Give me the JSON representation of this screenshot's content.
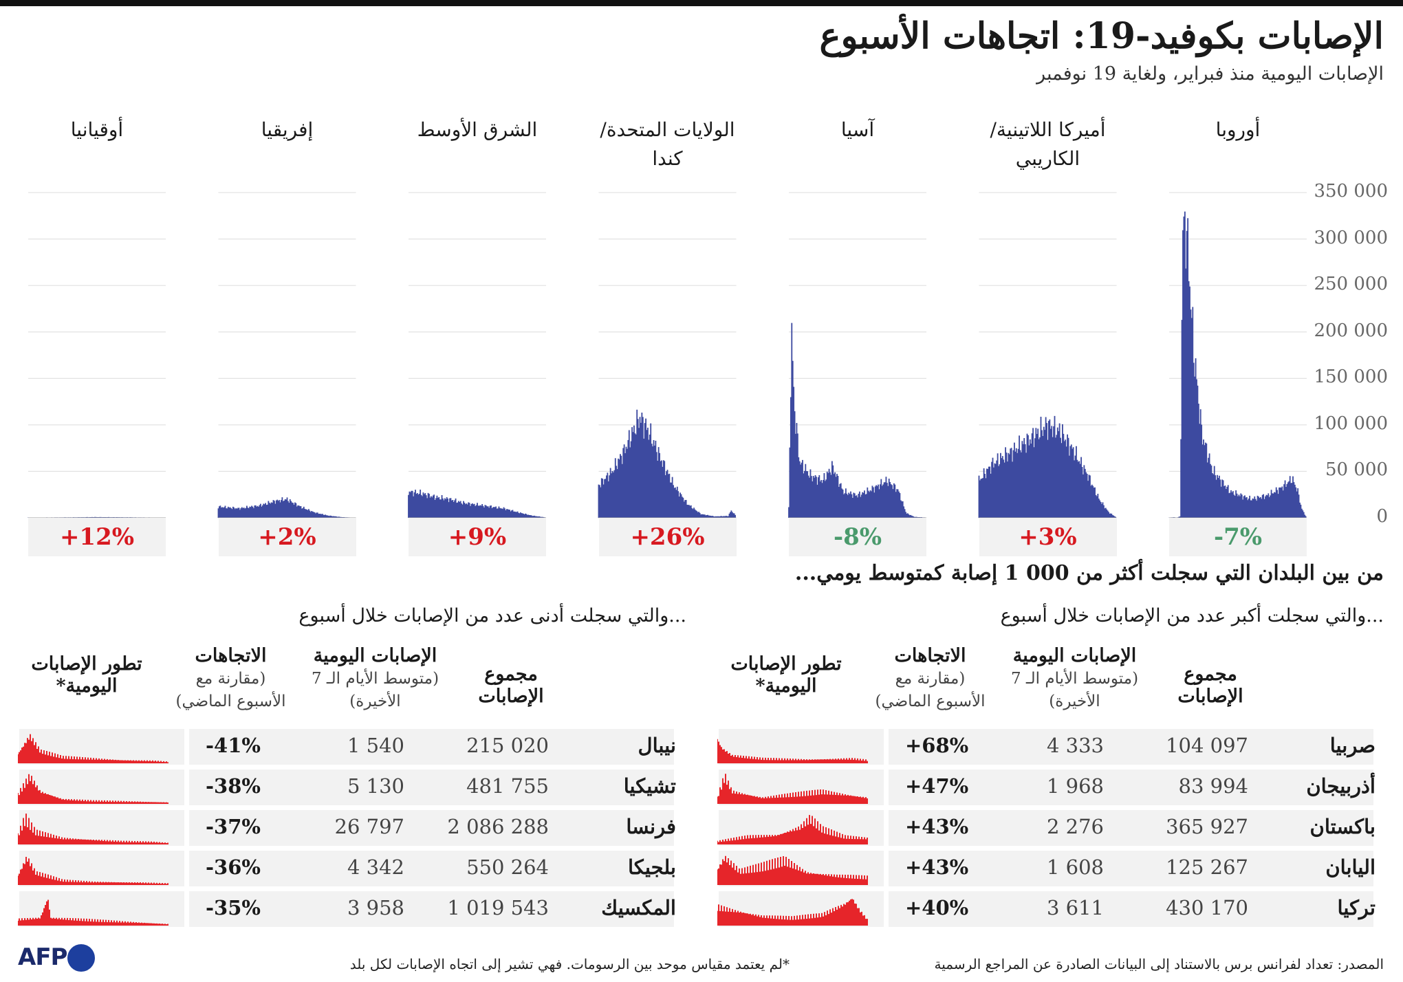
{
  "title": "الإصابات بكوفيد-19: اتجاهات الأسبوع",
  "subtitle": "الإصابات اليومية منذ فبراير، ولغاية 19 نوفمبر",
  "colors": {
    "bar": "#3d4aa0",
    "spark": "#e6252a",
    "increase": "#d71920",
    "decrease": "#4a9a6c",
    "band": "#f2f2f2"
  },
  "chart_data": {
    "type": "bar",
    "title": "الإصابات بكوفيد-19: اتجاهات الأسبوع",
    "subtitle": "الإصابات اليومية منذ فبراير، ولغاية 19 نوفمبر",
    "ylim": [
      0,
      350000
    ],
    "y_ticks": [
      "0",
      "50 000",
      "100 000",
      "150 000",
      "200 000",
      "250 000",
      "300 000",
      "350 000"
    ],
    "grid": true,
    "series": [
      {
        "name": "أوروبا",
        "trend": "-7%",
        "direction": "down",
        "shape": [
          [
            0,
            200
          ],
          [
            0.03,
            600
          ],
          [
            0.06,
            300
          ],
          [
            0.08,
            1500
          ],
          [
            0.1,
            305000
          ],
          [
            0.12,
            320000
          ],
          [
            0.14,
            280000
          ],
          [
            0.18,
            180000
          ],
          [
            0.24,
            90000
          ],
          [
            0.32,
            50000
          ],
          [
            0.45,
            28000
          ],
          [
            0.6,
            20000
          ],
          [
            0.72,
            24000
          ],
          [
            0.82,
            32000
          ],
          [
            0.9,
            42000
          ],
          [
            0.94,
            30000
          ],
          [
            0.97,
            10000
          ],
          [
            1,
            2000
          ]
        ]
      },
      {
        "name": "أميركا اللاتينية/ الكاريبي",
        "trend": "+3%",
        "direction": "up",
        "shape": [
          [
            0,
            40000
          ],
          [
            0.1,
            58000
          ],
          [
            0.25,
            72000
          ],
          [
            0.38,
            85000
          ],
          [
            0.5,
            100000
          ],
          [
            0.6,
            92000
          ],
          [
            0.7,
            70000
          ],
          [
            0.8,
            45000
          ],
          [
            0.88,
            20000
          ],
          [
            0.95,
            6000
          ],
          [
            1,
            1000
          ]
        ]
      },
      {
        "name": "آسيا",
        "trend": "-8%",
        "direction": "down",
        "shape": [
          [
            0,
            10000
          ],
          [
            0.02,
            202000
          ],
          [
            0.04,
            120000
          ],
          [
            0.08,
            60000
          ],
          [
            0.16,
            45000
          ],
          [
            0.25,
            40000
          ],
          [
            0.32,
            55000
          ],
          [
            0.4,
            28000
          ],
          [
            0.5,
            24000
          ],
          [
            0.6,
            30000
          ],
          [
            0.72,
            40000
          ],
          [
            0.8,
            30000
          ],
          [
            0.86,
            5000
          ],
          [
            0.92,
            1000
          ],
          [
            1,
            400
          ]
        ]
      },
      {
        "name": "الولايات المتحدة/ كندا",
        "trend": "+26%",
        "direction": "up",
        "shape": [
          [
            0,
            35000
          ],
          [
            0.1,
            50000
          ],
          [
            0.18,
            70000
          ],
          [
            0.26,
            95000
          ],
          [
            0.3,
            108000
          ],
          [
            0.36,
            95000
          ],
          [
            0.45,
            65000
          ],
          [
            0.55,
            35000
          ],
          [
            0.65,
            15000
          ],
          [
            0.75,
            4000
          ],
          [
            0.85,
            1500
          ],
          [
            0.95,
            2000
          ],
          [
            0.97,
            8000
          ],
          [
            1,
            3000
          ]
        ]
      },
      {
        "name": "الشرق الأوسط",
        "trend": "+9%",
        "direction": "up",
        "shape": [
          [
            0,
            28000
          ],
          [
            0.1,
            26000
          ],
          [
            0.2,
            22000
          ],
          [
            0.3,
            20000
          ],
          [
            0.4,
            16000
          ],
          [
            0.5,
            14000
          ],
          [
            0.6,
            12000
          ],
          [
            0.7,
            10000
          ],
          [
            0.8,
            6000
          ],
          [
            0.9,
            2500
          ],
          [
            1,
            500
          ]
        ]
      },
      {
        "name": "إفريقيا",
        "trend": "+2%",
        "direction": "up",
        "shape": [
          [
            0,
            12000
          ],
          [
            0.15,
            10000
          ],
          [
            0.3,
            13000
          ],
          [
            0.42,
            18000
          ],
          [
            0.5,
            20000
          ],
          [
            0.6,
            12000
          ],
          [
            0.7,
            6000
          ],
          [
            0.8,
            2500
          ],
          [
            0.9,
            800
          ],
          [
            1,
            200
          ]
        ]
      },
      {
        "name": "أوقيانيا",
        "trend": "+12%",
        "direction": "up",
        "shape": [
          [
            0,
            300
          ],
          [
            0.3,
            500
          ],
          [
            0.5,
            800
          ],
          [
            0.7,
            600
          ],
          [
            0.85,
            400
          ],
          [
            1,
            300
          ]
        ]
      }
    ]
  },
  "section_heading": "من بين البلدان التي سجلت أكثر من 000 1 إصابة كمتوسط يومي...",
  "right_table": {
    "subheading": "...والتي سجلت أكبر عدد من الإصابات خلال أسبوع",
    "headers": {
      "total": "مجموع الإصابات",
      "daily": "الإصابات اليومية",
      "daily_note": "(متوسط الأيام الـ 7 الأخيرة)",
      "trend": "الاتجاهات",
      "trend_note": "(مقارنة مع الأسبوع الماضي)",
      "evolution": "تطور الإصابات اليومية*"
    },
    "rows": [
      {
        "country": "صربيا",
        "total": "104 097",
        "daily": "4 333",
        "trend": "+68%",
        "spark": [
          [
            0,
            0.8
          ],
          [
            0.03,
            0.5
          ],
          [
            0.1,
            0.25
          ],
          [
            0.3,
            0.15
          ],
          [
            0.6,
            0.12
          ],
          [
            0.9,
            0.15
          ],
          [
            1,
            0.1
          ]
        ]
      },
      {
        "country": "أذربيجان",
        "total": "83 994",
        "daily": "1 968",
        "trend": "+47%",
        "spark": [
          [
            0,
            0.2
          ],
          [
            0.05,
            0.9
          ],
          [
            0.1,
            0.4
          ],
          [
            0.3,
            0.2
          ],
          [
            0.5,
            0.3
          ],
          [
            0.7,
            0.4
          ],
          [
            0.85,
            0.3
          ],
          [
            1,
            0.2
          ]
        ]
      },
      {
        "country": "باكستان",
        "total": "365 927",
        "daily": "2 276",
        "trend": "+43%",
        "spark": [
          [
            0,
            0.1
          ],
          [
            0.2,
            0.25
          ],
          [
            0.4,
            0.3
          ],
          [
            0.55,
            0.55
          ],
          [
            0.62,
            0.85
          ],
          [
            0.7,
            0.5
          ],
          [
            0.85,
            0.25
          ],
          [
            1,
            0.2
          ]
        ]
      },
      {
        "country": "اليابان",
        "total": "125 267",
        "daily": "1 608",
        "trend": "+43%",
        "spark": [
          [
            0,
            0.5
          ],
          [
            0.05,
            0.9
          ],
          [
            0.15,
            0.45
          ],
          [
            0.3,
            0.6
          ],
          [
            0.45,
            0.8
          ],
          [
            0.6,
            0.4
          ],
          [
            0.8,
            0.3
          ],
          [
            1,
            0.25
          ]
        ]
      },
      {
        "country": "تركيا",
        "total": "430 170",
        "daily": "3 611",
        "trend": "+40%",
        "spark": [
          [
            0,
            0.6
          ],
          [
            0.1,
            0.5
          ],
          [
            0.3,
            0.3
          ],
          [
            0.5,
            0.25
          ],
          [
            0.7,
            0.35
          ],
          [
            0.85,
            0.7
          ],
          [
            0.9,
            0.9
          ],
          [
            0.95,
            0.5
          ],
          [
            1,
            0.2
          ]
        ]
      }
    ]
  },
  "left_table": {
    "subheading": "...والتي سجلت أدنى عدد من الإصابات خلال أسبوع",
    "headers": {
      "total": "مجموع الإصابات",
      "daily": "الإصابات اليومية",
      "daily_note": "(متوسط الأيام الـ 7 الأخيرة)",
      "trend": "الاتجاهات",
      "trend_note": "(مقارنة مع الأسبوع الماضي)",
      "evolution": "تطور الإصابات اليومية*"
    },
    "rows": [
      {
        "country": "نيبال",
        "total": "215 020",
        "daily": "1 540",
        "trend": "-41%",
        "spark": [
          [
            0,
            0.3
          ],
          [
            0.08,
            0.9
          ],
          [
            0.15,
            0.4
          ],
          [
            0.3,
            0.2
          ],
          [
            0.5,
            0.15
          ],
          [
            0.7,
            0.1
          ],
          [
            0.9,
            0.08
          ],
          [
            1,
            0.05
          ]
        ]
      },
      {
        "country": "تشيكيا",
        "total": "481 755",
        "daily": "5 130",
        "trend": "-38%",
        "spark": [
          [
            0,
            0.3
          ],
          [
            0.08,
            0.9
          ],
          [
            0.15,
            0.4
          ],
          [
            0.3,
            0.15
          ],
          [
            0.5,
            0.1
          ],
          [
            0.7,
            0.08
          ],
          [
            1,
            0.05
          ]
        ]
      },
      {
        "country": "فرنسا",
        "total": "2 086 288",
        "daily": "26 797",
        "trend": "-37%",
        "spark": [
          [
            0,
            0.3
          ],
          [
            0.05,
            0.85
          ],
          [
            0.12,
            0.4
          ],
          [
            0.3,
            0.2
          ],
          [
            0.5,
            0.15
          ],
          [
            0.7,
            0.1
          ],
          [
            0.9,
            0.08
          ],
          [
            1,
            0.05
          ]
        ]
      },
      {
        "country": "بلجيكا",
        "total": "550 264",
        "daily": "4 342",
        "trend": "-36%",
        "spark": [
          [
            0,
            0.3
          ],
          [
            0.06,
            0.9
          ],
          [
            0.12,
            0.4
          ],
          [
            0.3,
            0.15
          ],
          [
            0.5,
            0.1
          ],
          [
            0.8,
            0.08
          ],
          [
            1,
            0.05
          ]
        ]
      },
      {
        "country": "المكسيك",
        "total": "1 019 543",
        "daily": "3 958",
        "trend": "-35%",
        "spark": [
          [
            0,
            0.2
          ],
          [
            0.15,
            0.25
          ],
          [
            0.2,
            0.9
          ],
          [
            0.22,
            0.25
          ],
          [
            0.4,
            0.2
          ],
          [
            0.6,
            0.15
          ],
          [
            0.8,
            0.1
          ],
          [
            1,
            0.05
          ]
        ]
      }
    ]
  },
  "footnote": "*لم يعتمد مقياس موحد بين الرسومات. فهي تشير إلى اتجاه الإصابات لكل بلد",
  "source": "المصدر: تعداد لفرانس برس بالاستناد إلى البيانات الصادرة عن المراجع الرسمية",
  "logo_text": "AFP"
}
